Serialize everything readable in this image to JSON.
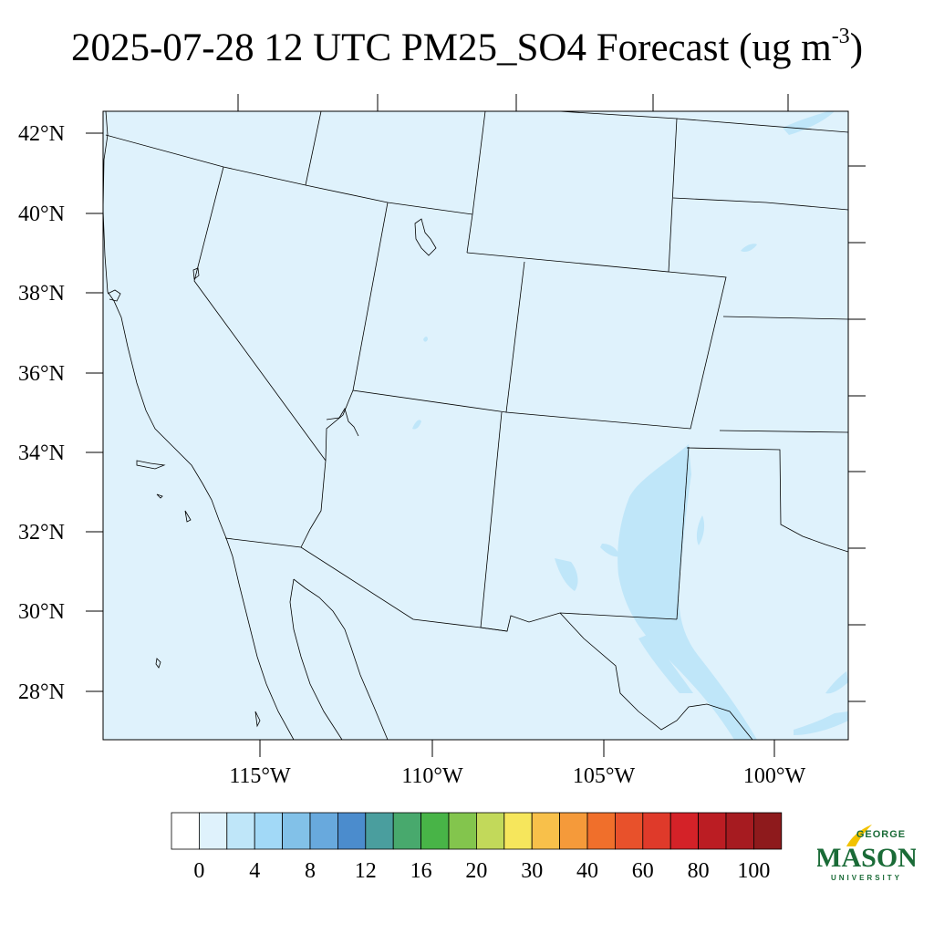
{
  "title": {
    "text": "2025-07-28 12 UTC PM25_SO4 Forecast (ug m",
    "sup": "-3",
    "close": ")"
  },
  "axes": {
    "lat_labels": [
      "42°N",
      "40°N",
      "38°N",
      "36°N",
      "34°N",
      "32°N",
      "30°N",
      "28°N"
    ],
    "lon_labels": [
      "115°W",
      "110°W",
      "105°W",
      "100°W"
    ]
  },
  "colorbar": {
    "colors": [
      "#ffffff",
      "#dff2fc",
      "#bfe6f9",
      "#a2d9f7",
      "#82c1e8",
      "#68a9dd",
      "#4b8ccd",
      "#4a9e9e",
      "#48a96d",
      "#48b447",
      "#83c54d",
      "#c2d95a",
      "#f6e65c",
      "#f8c04a",
      "#f59a3a",
      "#f06f2b",
      "#e8512b",
      "#df3a2a",
      "#d42228",
      "#bb1d23",
      "#a61b20",
      "#8e1a1c"
    ],
    "labels": [
      "0",
      "4",
      "8",
      "12",
      "16",
      "20",
      "30",
      "40",
      "60",
      "80",
      "100"
    ]
  },
  "logo": {
    "top": "GEORGE",
    "main": "MASON",
    "bottom": "UNIVERSITY",
    "colors": {
      "green": "#1a6b37",
      "gold": "#f2c200"
    }
  },
  "map": {
    "background_color": "#dff2fc",
    "enhanced_color": "#bfe6f9"
  }
}
